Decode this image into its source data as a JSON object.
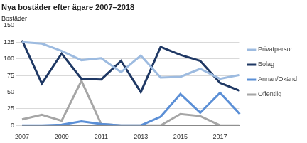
{
  "chart_data": {
    "type": "line",
    "title": "Nya bostäder efter ägare 2007–2018",
    "y_label": "Bostäder",
    "categories": [
      "2007",
      null,
      "2009",
      null,
      "2011",
      null,
      "2013",
      null,
      "2015",
      null,
      "2017",
      null
    ],
    "series": [
      {
        "name": "Privatperson",
        "color": "#9dbbe0",
        "values": [
          125,
          123,
          112,
          98,
          101,
          80,
          105,
          72,
          73,
          85,
          70,
          76
        ]
      },
      {
        "name": "Bolag",
        "color": "#1f3864",
        "values": [
          128,
          63,
          108,
          70,
          69,
          97,
          50,
          118,
          106,
          97,
          64,
          52
        ]
      },
      {
        "name": "Annan/Okänd",
        "color": "#5b8fd6",
        "values": [
          0,
          0,
          1,
          6,
          2,
          0,
          0,
          13,
          47,
          19,
          49,
          17
        ]
      },
      {
        "name": "Offentlig",
        "color": "#a6a6a6",
        "values": [
          9,
          16,
          7,
          67,
          2,
          0,
          0,
          0,
          17,
          14,
          0,
          0
        ]
      }
    ],
    "ylim": [
      0,
      150
    ],
    "yticks": [
      0,
      25,
      50,
      75,
      100,
      125,
      150
    ],
    "grid": true,
    "legend": "right"
  }
}
